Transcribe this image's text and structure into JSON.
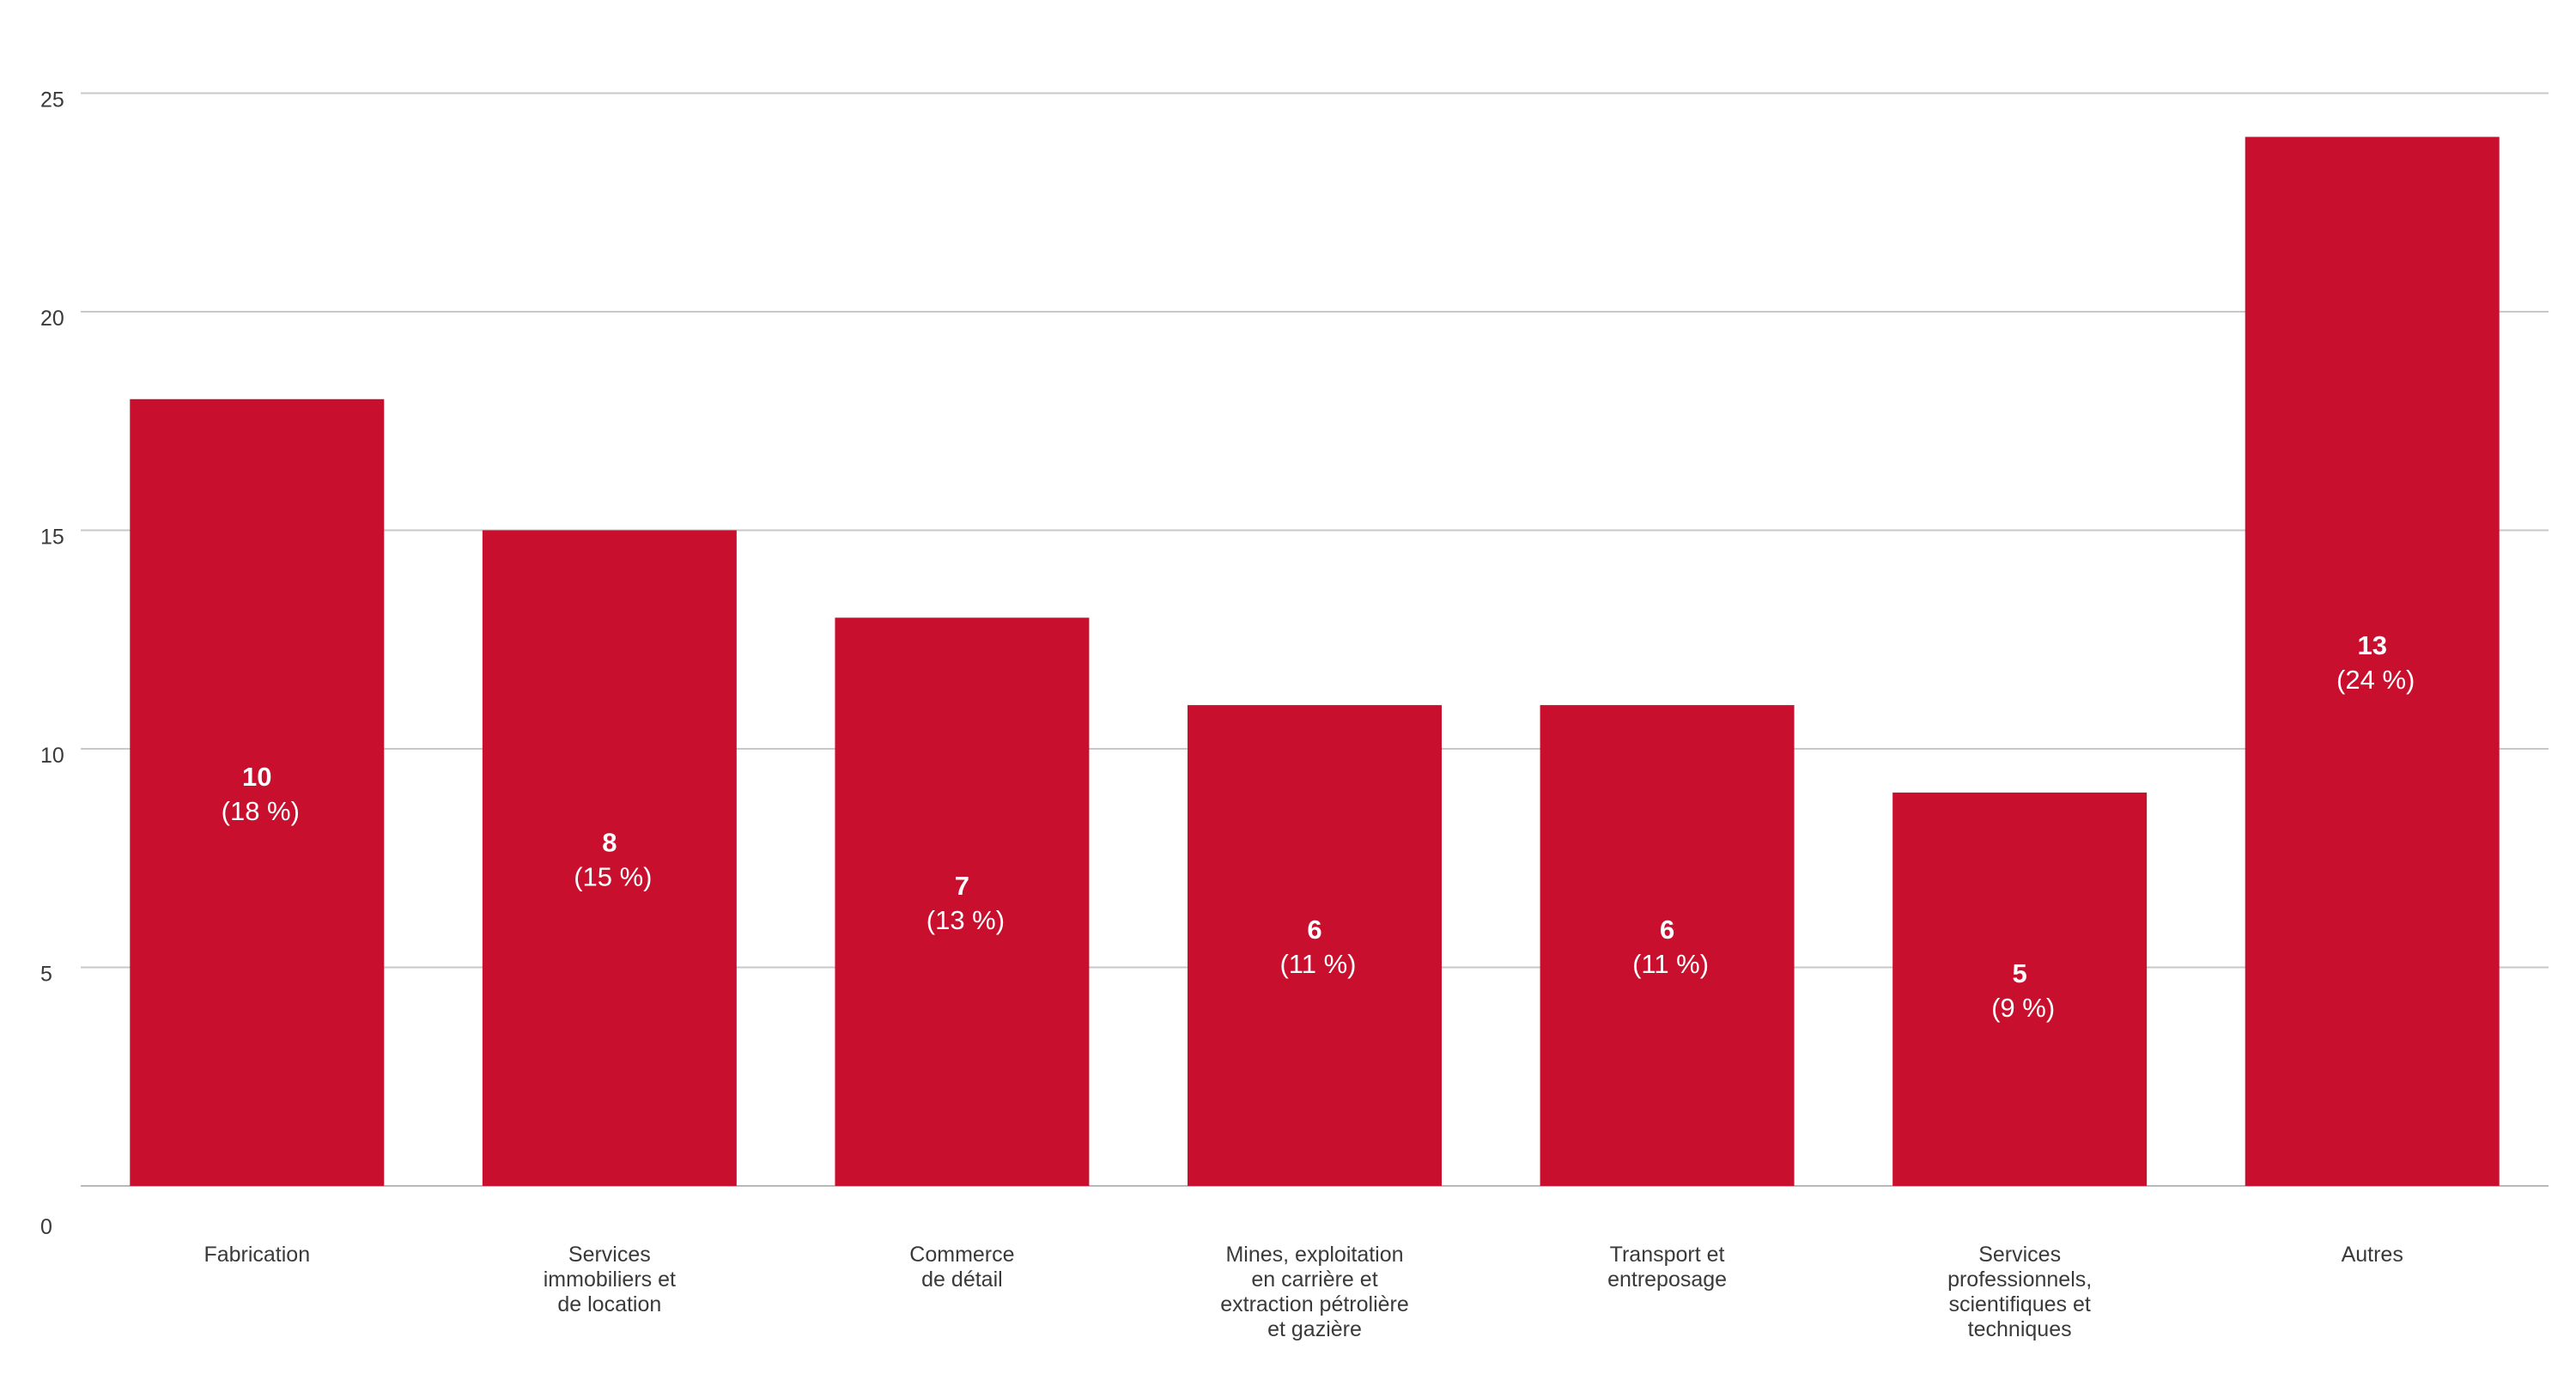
{
  "chart_data": {
    "type": "bar",
    "title": "",
    "xlabel": "",
    "ylabel": "",
    "ylim": [
      0,
      25
    ],
    "yticks": [
      "0",
      "5",
      "10",
      "15",
      "20",
      "25"
    ],
    "grid": true,
    "bar_color": "#c8102e",
    "categories": [
      [
        "Fabrication"
      ],
      [
        "Services",
        "immobiliers et",
        "de location"
      ],
      [
        "Commerce",
        "de détail"
      ],
      [
        "Mines, exploitation",
        "en carrière et",
        "extraction pétrolière",
        "et gazière"
      ],
      [
        "Transport et",
        "entreposage"
      ],
      [
        "Services",
        "professionnels,",
        "scientifiques et",
        "techniques"
      ],
      [
        "Autres"
      ]
    ],
    "values": [
      18,
      15,
      13,
      11,
      11,
      9,
      24
    ],
    "data_labels": [
      {
        "count": "10",
        "percent": "(18 %)"
      },
      {
        "count": "8",
        "percent": "(15 %)"
      },
      {
        "count": "7",
        "percent": "(13 %)"
      },
      {
        "count": "6",
        "percent": "(11 %)"
      },
      {
        "count": "6",
        "percent": "(11 %)"
      },
      {
        "count": "5",
        "percent": "(9 %)"
      },
      {
        "count": "13",
        "percent": "(24 %)"
      }
    ]
  }
}
